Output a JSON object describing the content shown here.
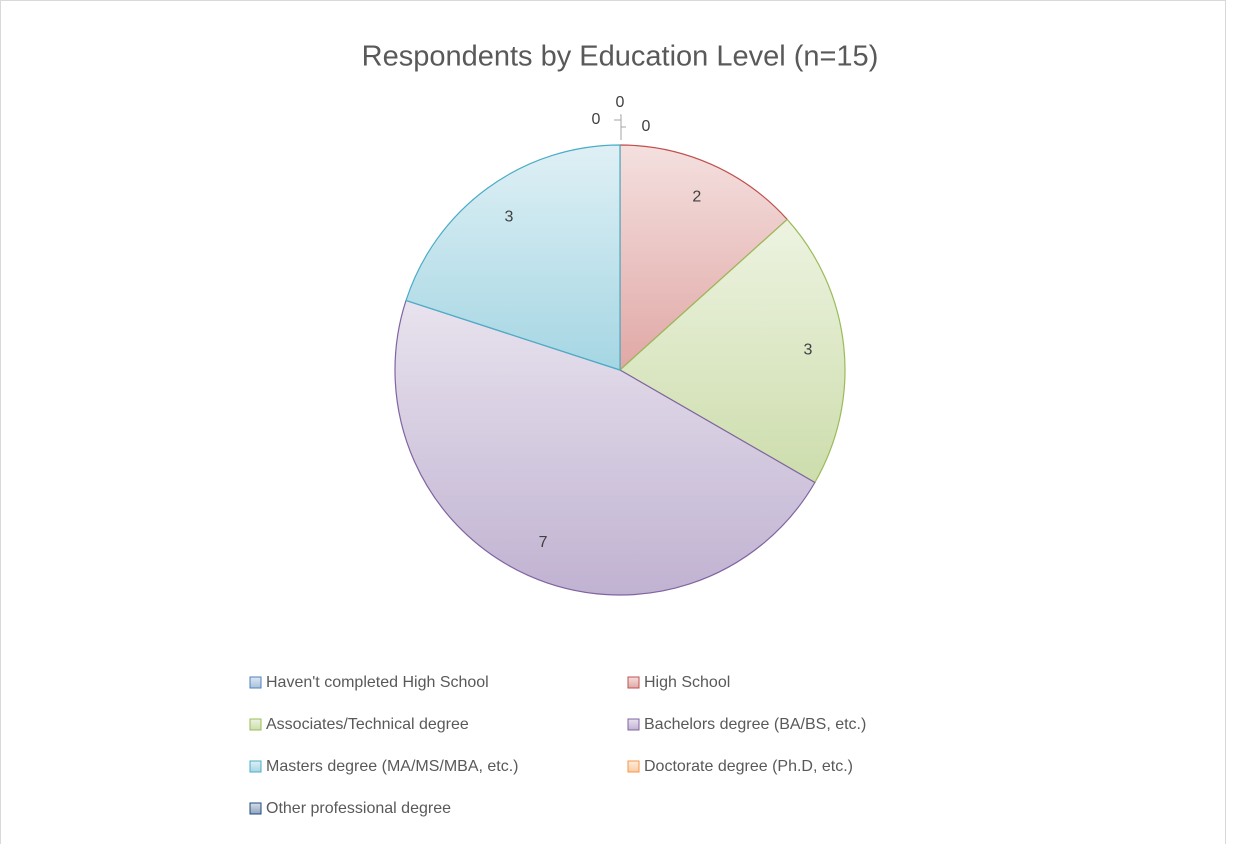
{
  "chart_data": {
    "type": "pie",
    "title": "Respondents by Education Level (n=15)",
    "categories": [
      "Haven't completed High School",
      "High School",
      "Associates/Technical degree",
      "Bachelors degree (BA/BS, etc.)",
      "Masters degree (MA/MS/MBA, etc.)",
      "Doctorate degree (Ph.D, etc.)",
      "Other professional degree"
    ],
    "values": [
      0,
      2,
      3,
      7,
      3,
      0,
      0
    ],
    "colors": [
      "#4f81bd",
      "#c0504d",
      "#9bbb59",
      "#8064a2",
      "#4bacc6",
      "#f79646",
      "#1f497d"
    ],
    "legend": "bottom"
  }
}
